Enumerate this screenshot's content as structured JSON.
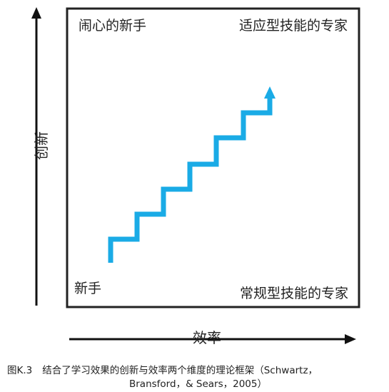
{
  "quadrants": {
    "top_left": "闹心的新手",
    "top_right": "适应型技能的专家",
    "bottom_left": "新手",
    "bottom_right": "常规型技能的专家"
  },
  "axes": {
    "x_label": "效率",
    "y_label": "创新"
  },
  "caption": {
    "figure_number": "图K.3",
    "line1": "结合了学习效果的创新与效率两个维度的理论框架（Schwartz，",
    "line2": "Bransford，& Sears，2005）"
  },
  "colors": {
    "staircase": "#1aabe6",
    "frame": "#222222",
    "axis": "#111111"
  }
}
